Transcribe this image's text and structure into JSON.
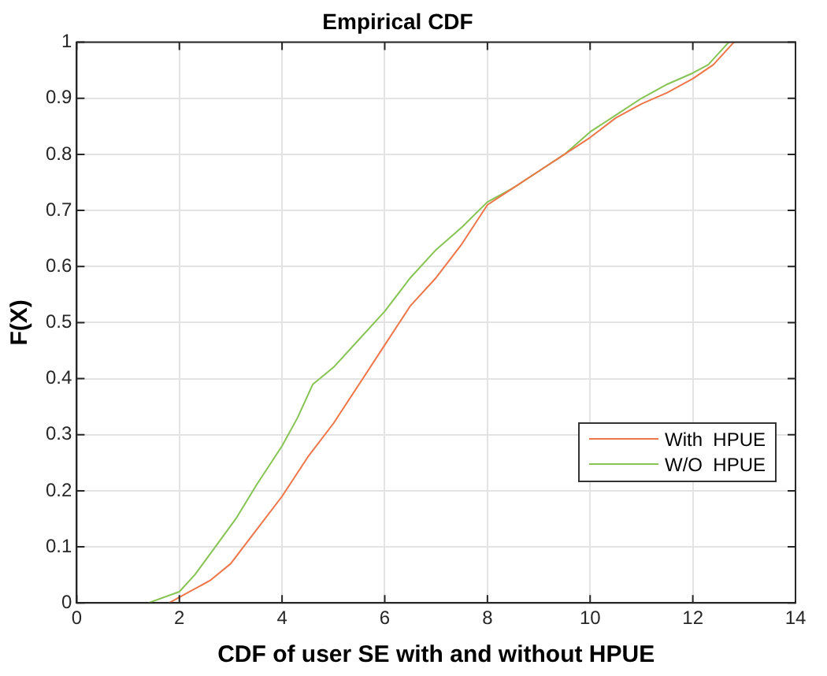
{
  "chart_data": {
    "type": "line",
    "title": "Empirical CDF",
    "xlabel": "CDF of user SE with and without HPUE",
    "ylabel": "F(X)",
    "xlim": [
      0,
      14
    ],
    "xticks": [
      0,
      2,
      4,
      6,
      8,
      10,
      12,
      14
    ],
    "ylim": [
      0,
      1
    ],
    "yticks": [
      0,
      0.1,
      0.2,
      0.3,
      0.4,
      0.5,
      0.6,
      0.7,
      0.8,
      0.9,
      1
    ],
    "grid": true,
    "legend": "right",
    "marker": "none",
    "line_style": "solid",
    "series": [
      {
        "name": "With  HPUE",
        "color": "#ee7648",
        "x": [
          1.8,
          2.2,
          2.6,
          3,
          3.5,
          4,
          4.5,
          5,
          5.5,
          6,
          6.5,
          7,
          7.5,
          8,
          8.5,
          9,
          9.5,
          10,
          10.5,
          11,
          11.5,
          12,
          12.4,
          12.8
        ],
        "values": [
          0,
          0.02,
          0.04,
          0.07,
          0.13,
          0.19,
          0.26,
          0.32,
          0.39,
          0.46,
          0.53,
          0.58,
          0.64,
          0.71,
          0.74,
          0.77,
          0.8,
          0.83,
          0.865,
          0.89,
          0.91,
          0.935,
          0.96,
          1
        ]
      },
      {
        "name": "W/O  HPUE",
        "color": "#86c453",
        "x": [
          1.4,
          2,
          2.3,
          2.7,
          3.1,
          3.5,
          4,
          4.3,
          4.6,
          5,
          5.5,
          6,
          6.5,
          7,
          7.5,
          8,
          8.5,
          9,
          9.5,
          10,
          10.5,
          11,
          11.5,
          12,
          12.3,
          12.7
        ],
        "values": [
          0,
          0.02,
          0.05,
          0.1,
          0.15,
          0.21,
          0.28,
          0.33,
          0.39,
          0.42,
          0.47,
          0.52,
          0.58,
          0.63,
          0.67,
          0.715,
          0.74,
          0.77,
          0.8,
          0.84,
          0.87,
          0.9,
          0.925,
          0.945,
          0.96,
          1
        ]
      }
    ]
  }
}
